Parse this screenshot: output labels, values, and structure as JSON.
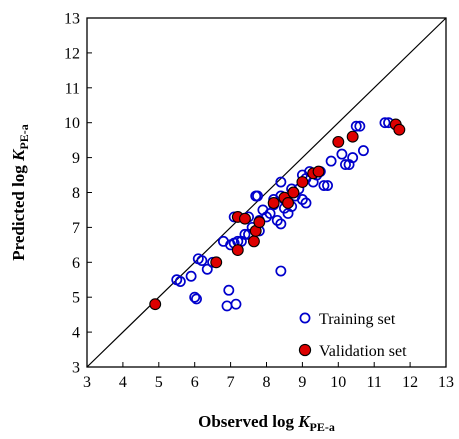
{
  "chart_data": {
    "type": "scatter",
    "xlabel": {
      "prefix": "Observed log ",
      "var": "K",
      "sub": "PE-a"
    },
    "ylabel": {
      "prefix": "Predicted log ",
      "var": "K",
      "sub": "PE-a"
    },
    "xlim": [
      3,
      13
    ],
    "ylim": [
      3,
      13
    ],
    "xticks": [
      "3",
      "4",
      "5",
      "6",
      "7",
      "8",
      "9",
      "10",
      "11",
      "12",
      "13"
    ],
    "yticks": [
      "3",
      "4",
      "5",
      "6",
      "7",
      "8",
      "9",
      "10",
      "11",
      "12",
      "13"
    ],
    "identity_line": true,
    "grid": false,
    "legend_position": "bottom-right",
    "series": [
      {
        "name": "Training set",
        "marker": "open-circle",
        "color": "#0000cc",
        "points": [
          [
            5.5,
            5.5
          ],
          [
            5.6,
            5.45
          ],
          [
            5.9,
            5.6
          ],
          [
            6.0,
            5.0
          ],
          [
            6.05,
            4.95
          ],
          [
            6.1,
            6.1
          ],
          [
            6.2,
            6.05
          ],
          [
            6.35,
            5.8
          ],
          [
            6.5,
            6.0
          ],
          [
            6.8,
            6.6
          ],
          [
            6.9,
            4.75
          ],
          [
            6.95,
            5.2
          ],
          [
            7.0,
            6.5
          ],
          [
            7.1,
            6.55
          ],
          [
            7.15,
            4.8
          ],
          [
            7.1,
            7.3
          ],
          [
            7.2,
            6.6
          ],
          [
            7.3,
            6.6
          ],
          [
            7.4,
            6.8
          ],
          [
            7.5,
            6.8
          ],
          [
            7.5,
            7.3
          ],
          [
            7.6,
            7.0
          ],
          [
            7.7,
            7.9
          ],
          [
            7.75,
            7.9
          ],
          [
            7.8,
            6.9
          ],
          [
            7.8,
            7.2
          ],
          [
            7.9,
            7.5
          ],
          [
            8.0,
            7.3
          ],
          [
            8.1,
            7.4
          ],
          [
            8.2,
            7.65
          ],
          [
            8.2,
            7.8
          ],
          [
            8.3,
            7.2
          ],
          [
            8.4,
            7.1
          ],
          [
            8.4,
            7.9
          ],
          [
            8.4,
            8.3
          ],
          [
            8.5,
            7.55
          ],
          [
            8.5,
            7.8
          ],
          [
            8.6,
            7.4
          ],
          [
            8.6,
            7.7
          ],
          [
            8.7,
            7.6
          ],
          [
            8.7,
            8.1
          ],
          [
            8.8,
            7.9
          ],
          [
            8.9,
            8.1
          ],
          [
            9.0,
            7.8
          ],
          [
            9.0,
            8.5
          ],
          [
            9.1,
            7.7
          ],
          [
            9.1,
            8.4
          ],
          [
            9.2,
            8.6
          ],
          [
            9.3,
            8.3
          ],
          [
            9.4,
            8.5
          ],
          [
            9.5,
            8.6
          ],
          [
            9.6,
            8.2
          ],
          [
            9.7,
            8.2
          ],
          [
            9.8,
            8.9
          ],
          [
            10.1,
            9.1
          ],
          [
            10.2,
            8.8
          ],
          [
            10.3,
            8.8
          ],
          [
            10.4,
            9.0
          ],
          [
            10.5,
            9.9
          ],
          [
            10.6,
            9.9
          ],
          [
            10.7,
            9.2
          ],
          [
            11.3,
            10.0
          ],
          [
            11.4,
            10.0
          ],
          [
            8.4,
            5.75
          ]
        ]
      },
      {
        "name": "Validation set",
        "marker": "filled-circle",
        "color": "#dd0000",
        "points": [
          [
            4.9,
            4.8
          ],
          [
            6.6,
            6.0
          ],
          [
            7.2,
            6.35
          ],
          [
            7.2,
            7.3
          ],
          [
            7.4,
            7.25
          ],
          [
            7.65,
            6.6
          ],
          [
            7.7,
            6.9
          ],
          [
            7.8,
            7.15
          ],
          [
            8.2,
            7.7
          ],
          [
            8.5,
            7.85
          ],
          [
            8.6,
            7.7
          ],
          [
            8.75,
            8.0
          ],
          [
            9.0,
            8.3
          ],
          [
            9.3,
            8.55
          ],
          [
            9.45,
            8.6
          ],
          [
            10.0,
            9.45
          ],
          [
            10.4,
            9.6
          ],
          [
            11.6,
            9.95
          ],
          [
            11.7,
            9.8
          ]
        ]
      }
    ]
  }
}
